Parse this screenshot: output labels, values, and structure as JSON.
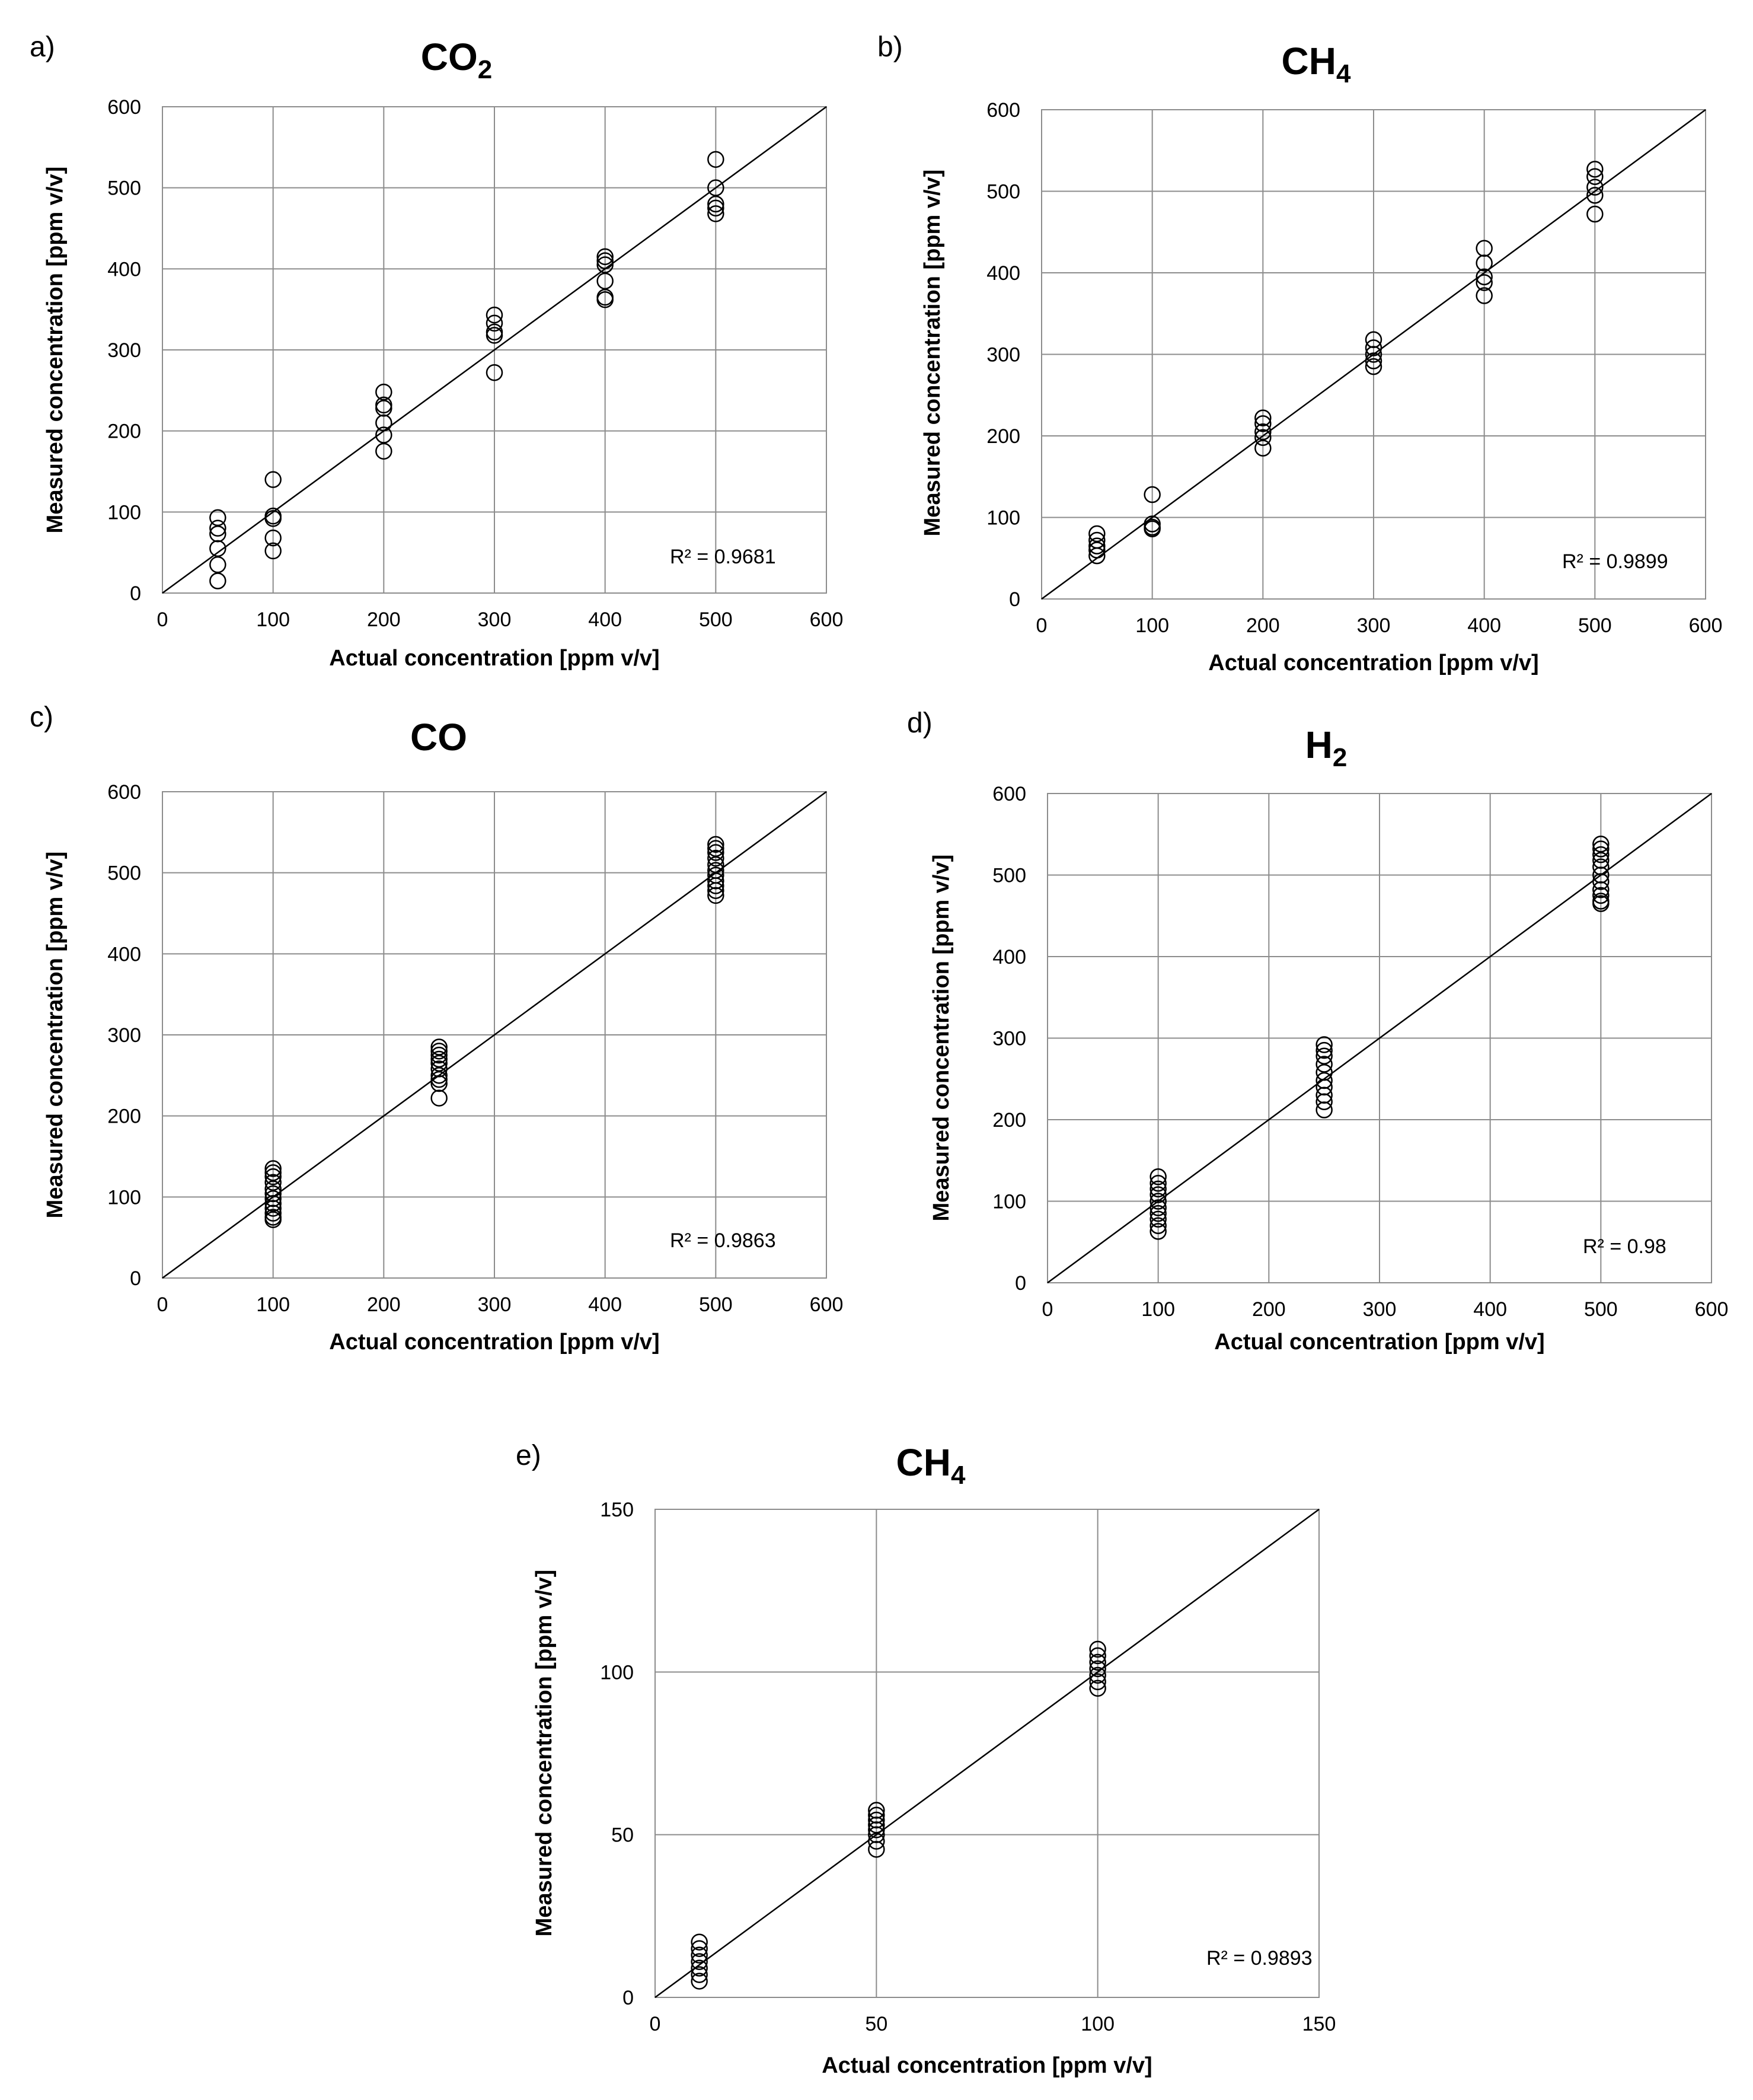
{
  "chart_data": [
    {
      "type": "scatter",
      "panel": "a)",
      "title": "CO",
      "title_sub": "2",
      "xlabel": "Actual  concentration [ppm v/v]",
      "ylabel": "Measured concentration [ppm v/v]",
      "xlim": [
        0,
        600
      ],
      "ylim": [
        0,
        600
      ],
      "xticks": [
        0,
        100,
        200,
        300,
        400,
        500,
        600
      ],
      "yticks": [
        0,
        100,
        200,
        300,
        400,
        500,
        600
      ],
      "grid": true,
      "r2_label": "R² = 0.9681",
      "trendline": [
        [
          0,
          0
        ],
        [
          600,
          600
        ]
      ],
      "points": [
        {
          "x": 50,
          "y": 93
        },
        {
          "x": 50,
          "y": 80
        },
        {
          "x": 50,
          "y": 73
        },
        {
          "x": 50,
          "y": 55
        },
        {
          "x": 50,
          "y": 35
        },
        {
          "x": 50,
          "y": 15
        },
        {
          "x": 100,
          "y": 140
        },
        {
          "x": 100,
          "y": 95
        },
        {
          "x": 100,
          "y": 92
        },
        {
          "x": 100,
          "y": 68
        },
        {
          "x": 100,
          "y": 52
        },
        {
          "x": 200,
          "y": 248
        },
        {
          "x": 200,
          "y": 232
        },
        {
          "x": 200,
          "y": 228
        },
        {
          "x": 200,
          "y": 210
        },
        {
          "x": 200,
          "y": 195
        },
        {
          "x": 200,
          "y": 175
        },
        {
          "x": 300,
          "y": 343
        },
        {
          "x": 300,
          "y": 333
        },
        {
          "x": 300,
          "y": 322
        },
        {
          "x": 300,
          "y": 318
        },
        {
          "x": 300,
          "y": 272
        },
        {
          "x": 400,
          "y": 415
        },
        {
          "x": 400,
          "y": 410
        },
        {
          "x": 400,
          "y": 405
        },
        {
          "x": 400,
          "y": 385
        },
        {
          "x": 400,
          "y": 365
        },
        {
          "x": 400,
          "y": 362
        },
        {
          "x": 500,
          "y": 535
        },
        {
          "x": 500,
          "y": 500
        },
        {
          "x": 500,
          "y": 480
        },
        {
          "x": 500,
          "y": 475
        },
        {
          "x": 500,
          "y": 468
        }
      ]
    },
    {
      "type": "scatter",
      "panel": "b)",
      "title": "CH",
      "title_sub": "4",
      "xlabel": "Actual  concentration [ppm v/v]",
      "ylabel": "Measured concentration [ppm v/v]",
      "xlim": [
        0,
        600
      ],
      "ylim": [
        0,
        600
      ],
      "xticks": [
        0,
        100,
        200,
        300,
        400,
        500,
        600
      ],
      "yticks": [
        0,
        100,
        200,
        300,
        400,
        500,
        600
      ],
      "grid": true,
      "r2_label": "R² = 0.9899",
      "trendline": [
        [
          0,
          0
        ],
        [
          600,
          600
        ]
      ],
      "points": [
        {
          "x": 50,
          "y": 80
        },
        {
          "x": 50,
          "y": 72
        },
        {
          "x": 50,
          "y": 65
        },
        {
          "x": 50,
          "y": 60
        },
        {
          "x": 50,
          "y": 53
        },
        {
          "x": 100,
          "y": 128
        },
        {
          "x": 100,
          "y": 92
        },
        {
          "x": 100,
          "y": 88
        },
        {
          "x": 100,
          "y": 86
        },
        {
          "x": 200,
          "y": 222
        },
        {
          "x": 200,
          "y": 215
        },
        {
          "x": 200,
          "y": 205
        },
        {
          "x": 200,
          "y": 198
        },
        {
          "x": 200,
          "y": 185
        },
        {
          "x": 300,
          "y": 318
        },
        {
          "x": 300,
          "y": 308
        },
        {
          "x": 300,
          "y": 300
        },
        {
          "x": 300,
          "y": 292
        },
        {
          "x": 300,
          "y": 285
        },
        {
          "x": 400,
          "y": 430
        },
        {
          "x": 400,
          "y": 412
        },
        {
          "x": 400,
          "y": 395
        },
        {
          "x": 400,
          "y": 388
        },
        {
          "x": 400,
          "y": 372
        },
        {
          "x": 500,
          "y": 527
        },
        {
          "x": 500,
          "y": 518
        },
        {
          "x": 500,
          "y": 505
        },
        {
          "x": 500,
          "y": 495
        },
        {
          "x": 500,
          "y": 472
        }
      ]
    },
    {
      "type": "scatter",
      "panel": "c)",
      "title": "CO",
      "title_sub": "",
      "xlabel": "Actual  concentration [ppm v/v]",
      "ylabel": "Measured concentration [ppm v/v]",
      "xlim": [
        0,
        600
      ],
      "ylim": [
        0,
        600
      ],
      "xticks": [
        0,
        100,
        200,
        300,
        400,
        500,
        600
      ],
      "yticks": [
        0,
        100,
        200,
        300,
        400,
        500,
        600
      ],
      "grid": true,
      "r2_label": "R² = 0.9863",
      "trendline": [
        [
          0,
          0
        ],
        [
          600,
          600
        ]
      ],
      "points": [
        {
          "x": 100,
          "y": 135
        },
        {
          "x": 100,
          "y": 130
        },
        {
          "x": 100,
          "y": 125
        },
        {
          "x": 100,
          "y": 118
        },
        {
          "x": 100,
          "y": 110
        },
        {
          "x": 100,
          "y": 104
        },
        {
          "x": 100,
          "y": 98
        },
        {
          "x": 100,
          "y": 92
        },
        {
          "x": 100,
          "y": 86
        },
        {
          "x": 100,
          "y": 80
        },
        {
          "x": 100,
          "y": 75
        },
        {
          "x": 100,
          "y": 72
        },
        {
          "x": 250,
          "y": 285
        },
        {
          "x": 250,
          "y": 280
        },
        {
          "x": 250,
          "y": 275
        },
        {
          "x": 250,
          "y": 270
        },
        {
          "x": 250,
          "y": 265
        },
        {
          "x": 250,
          "y": 258
        },
        {
          "x": 250,
          "y": 250
        },
        {
          "x": 250,
          "y": 245
        },
        {
          "x": 250,
          "y": 240
        },
        {
          "x": 250,
          "y": 222
        },
        {
          "x": 500,
          "y": 535
        },
        {
          "x": 500,
          "y": 530
        },
        {
          "x": 500,
          "y": 525
        },
        {
          "x": 500,
          "y": 518
        },
        {
          "x": 500,
          "y": 510
        },
        {
          "x": 500,
          "y": 503
        },
        {
          "x": 500,
          "y": 497
        },
        {
          "x": 500,
          "y": 490
        },
        {
          "x": 500,
          "y": 484
        },
        {
          "x": 500,
          "y": 478
        },
        {
          "x": 500,
          "y": 472
        }
      ]
    },
    {
      "type": "scatter",
      "panel": "d)",
      "title": "H",
      "title_sub": "2",
      "xlabel": "Actual  concentration [ppm v/v]",
      "ylabel": "Measured concentration [ppm v/v]",
      "xlim": [
        0,
        600
      ],
      "ylim": [
        0,
        600
      ],
      "xticks": [
        0,
        100,
        200,
        300,
        400,
        500,
        600
      ],
      "yticks": [
        0,
        100,
        200,
        300,
        400,
        500,
        600
      ],
      "grid": true,
      "r2_label": "R² = 0.98",
      "trendline": [
        [
          0,
          0
        ],
        [
          600,
          600
        ]
      ],
      "points": [
        {
          "x": 100,
          "y": 130
        },
        {
          "x": 100,
          "y": 122
        },
        {
          "x": 100,
          "y": 115
        },
        {
          "x": 100,
          "y": 108
        },
        {
          "x": 100,
          "y": 100
        },
        {
          "x": 100,
          "y": 92
        },
        {
          "x": 100,
          "y": 85
        },
        {
          "x": 100,
          "y": 78
        },
        {
          "x": 100,
          "y": 70
        },
        {
          "x": 100,
          "y": 63
        },
        {
          "x": 250,
          "y": 292
        },
        {
          "x": 250,
          "y": 285
        },
        {
          "x": 250,
          "y": 278
        },
        {
          "x": 250,
          "y": 268
        },
        {
          "x": 250,
          "y": 258
        },
        {
          "x": 250,
          "y": 248
        },
        {
          "x": 250,
          "y": 240
        },
        {
          "x": 250,
          "y": 230
        },
        {
          "x": 250,
          "y": 222
        },
        {
          "x": 250,
          "y": 212
        },
        {
          "x": 500,
          "y": 538
        },
        {
          "x": 500,
          "y": 532
        },
        {
          "x": 500,
          "y": 525
        },
        {
          "x": 500,
          "y": 518
        },
        {
          "x": 500,
          "y": 510
        },
        {
          "x": 500,
          "y": 500
        },
        {
          "x": 500,
          "y": 492
        },
        {
          "x": 500,
          "y": 482
        },
        {
          "x": 500,
          "y": 475
        },
        {
          "x": 500,
          "y": 468
        },
        {
          "x": 500,
          "y": 465
        }
      ]
    },
    {
      "type": "scatter",
      "panel": "e)",
      "title": "CH",
      "title_sub": "4",
      "xlabel": "Actual  concentration [ppm v/v]",
      "ylabel": "Measured concentration [ppm v/v]",
      "xlim": [
        0,
        150
      ],
      "ylim": [
        0,
        150
      ],
      "xticks": [
        0,
        50,
        100,
        150
      ],
      "yticks": [
        0,
        50,
        100,
        150
      ],
      "grid": true,
      "r2_label": "R² = 0.9893",
      "trendline": [
        [
          0,
          0
        ],
        [
          150,
          150
        ]
      ],
      "points": [
        {
          "x": 10,
          "y": 17
        },
        {
          "x": 10,
          "y": 15
        },
        {
          "x": 10,
          "y": 13
        },
        {
          "x": 10,
          "y": 11
        },
        {
          "x": 10,
          "y": 9
        },
        {
          "x": 10,
          "y": 7
        },
        {
          "x": 10,
          "y": 5
        },
        {
          "x": 50,
          "y": 57.5
        },
        {
          "x": 50,
          "y": 56
        },
        {
          "x": 50,
          "y": 54.5
        },
        {
          "x": 50,
          "y": 53
        },
        {
          "x": 50,
          "y": 51.5
        },
        {
          "x": 50,
          "y": 50
        },
        {
          "x": 50,
          "y": 48
        },
        {
          "x": 50,
          "y": 45.5
        },
        {
          "x": 100,
          "y": 107
        },
        {
          "x": 100,
          "y": 105
        },
        {
          "x": 100,
          "y": 103
        },
        {
          "x": 100,
          "y": 101
        },
        {
          "x": 100,
          "y": 99
        },
        {
          "x": 100,
          "y": 97
        },
        {
          "x": 100,
          "y": 95
        }
      ]
    }
  ]
}
